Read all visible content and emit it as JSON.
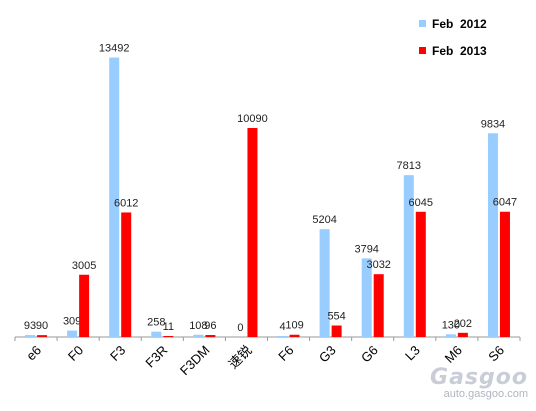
{
  "chart_data": {
    "type": "bar",
    "categories": [
      "e6",
      "F0",
      "F3",
      "F3R",
      "F3DM",
      "速锐",
      "F6",
      "G3",
      "G6",
      "L3",
      "M6",
      "S6"
    ],
    "series": [
      {
        "name": "Feb  2012",
        "color": "#99ccff",
        "values": [
          93,
          309,
          13492,
          258,
          108,
          0,
          4,
          5204,
          3794,
          7813,
          130,
          9834
        ]
      },
      {
        "name": "Feb  2013",
        "color": "#ff0000",
        "values": [
          90,
          3005,
          6012,
          11,
          96,
          10090,
          109,
          554,
          3032,
          6045,
          202,
          6047
        ]
      }
    ],
    "ylim": [
      0,
      14000
    ],
    "grid": false,
    "legend_position": "top-right",
    "title": "",
    "xlabel": "",
    "ylabel": ""
  },
  "watermark": {
    "logo": "Gasgoo",
    "url": "auto.gasgoo.com"
  }
}
